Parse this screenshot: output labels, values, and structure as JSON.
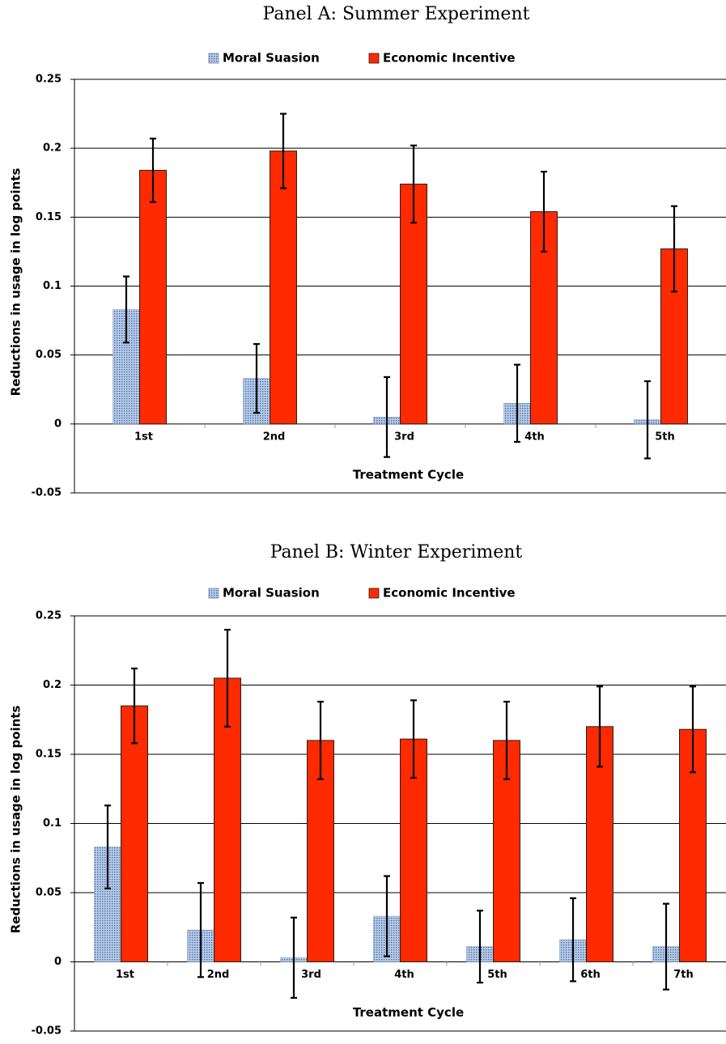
{
  "chart_data": [
    {
      "type": "bar",
      "title": "Panel A: Summer Experiment",
      "x_label": "Treatment Cycle",
      "y_label": "Reductions in usage in log points",
      "categories": [
        "1st",
        "2nd",
        "3rd",
        "4th",
        "5th"
      ],
      "series": [
        {
          "name": "Moral Suasion",
          "color": "#b8cdea",
          "values": [
            0.083,
            0.033,
            0.005,
            0.015,
            0.003
          ],
          "errors": [
            0.024,
            0.025,
            0.029,
            0.028,
            0.028
          ]
        },
        {
          "name": "Economic Incentive",
          "color": "#ff2a00",
          "values": [
            0.184,
            0.198,
            0.174,
            0.154,
            0.127
          ],
          "errors": [
            0.023,
            0.027,
            0.028,
            0.029,
            0.031
          ]
        }
      ],
      "ylim": [
        -0.05,
        0.25
      ],
      "yticks": [
        -0.05,
        0,
        0.05,
        0.1,
        0.15,
        0.2,
        0.25
      ],
      "grid": true,
      "legend": "top"
    },
    {
      "type": "bar",
      "title": "Panel B: Winter Experiment",
      "x_label": "Treatment Cycle",
      "y_label": "Reductions in usage in log points",
      "categories": [
        "1st",
        "2nd",
        "3rd",
        "4th",
        "5th",
        "6th",
        "7th"
      ],
      "series": [
        {
          "name": "Moral Suasion",
          "color": "#b8cdea",
          "values": [
            0.083,
            0.023,
            0.003,
            0.033,
            0.011,
            0.016,
            0.011
          ],
          "errors": [
            0.03,
            0.034,
            0.029,
            0.029,
            0.026,
            0.03,
            0.031
          ]
        },
        {
          "name": "Economic Incentive",
          "color": "#ff2a00",
          "values": [
            0.185,
            0.205,
            0.16,
            0.161,
            0.16,
            0.17,
            0.168
          ],
          "errors": [
            0.027,
            0.035,
            0.028,
            0.028,
            0.028,
            0.029,
            0.031
          ]
        }
      ],
      "ylim": [
        -0.05,
        0.25
      ],
      "yticks": [
        -0.05,
        0,
        0.05,
        0.1,
        0.15,
        0.2,
        0.25
      ],
      "grid": true,
      "legend": "top"
    }
  ]
}
